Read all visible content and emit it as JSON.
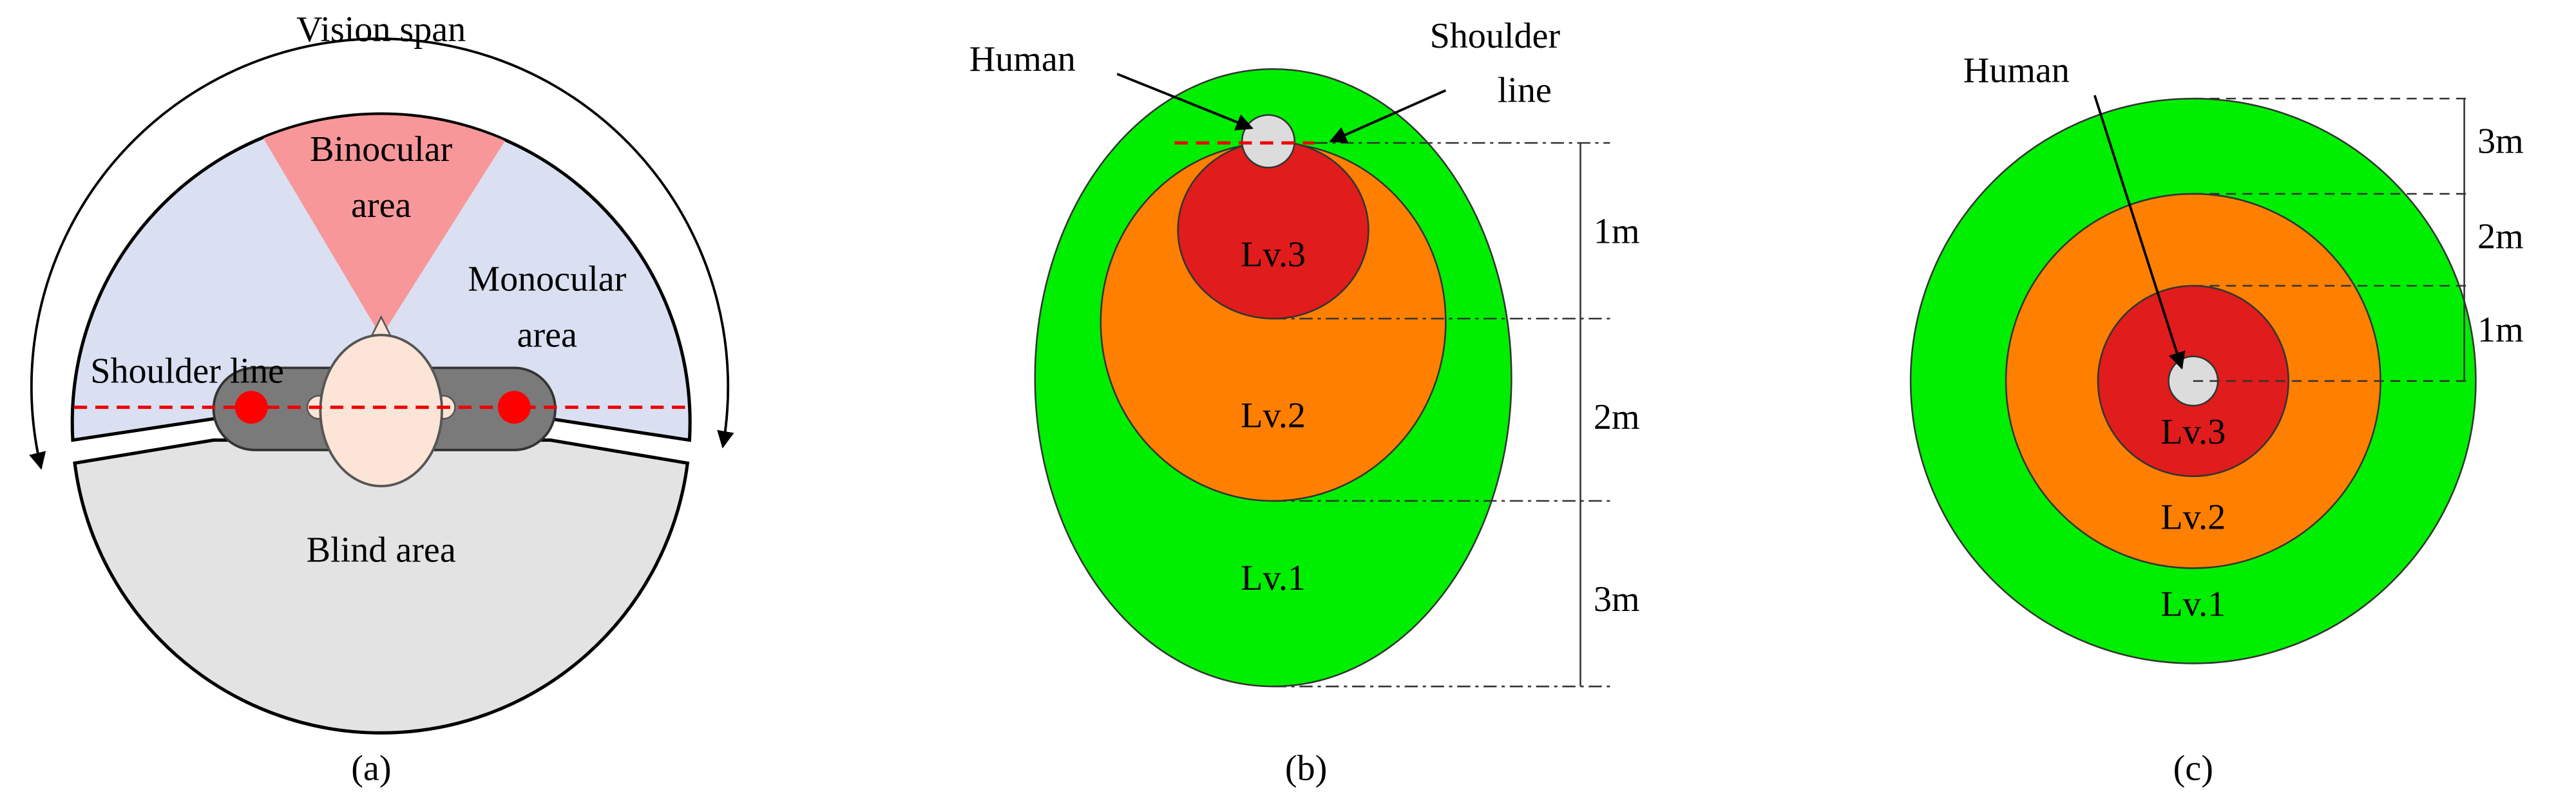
{
  "panel_a": {
    "vision_span": "Vision span",
    "binocular_area": [
      "Binocular",
      "area"
    ],
    "monocular_area": [
      "Monocular",
      "area"
    ],
    "shoulder_line": "Shoulder line",
    "blind_area": "Blind area",
    "caption": "(a)"
  },
  "panel_b": {
    "human": "Human",
    "shoulder_line": [
      "Shoulder",
      "line"
    ],
    "levels": [
      "Lv.3",
      "Lv.2",
      "Lv.1"
    ],
    "distances": [
      "1m",
      "2m",
      "3m"
    ],
    "caption": "(b)"
  },
  "panel_c": {
    "human": "Human",
    "levels": [
      "Lv.3",
      "Lv.2",
      "Lv.1"
    ],
    "distances": [
      "3m",
      "2m",
      "1m"
    ],
    "caption": "(c)"
  }
}
